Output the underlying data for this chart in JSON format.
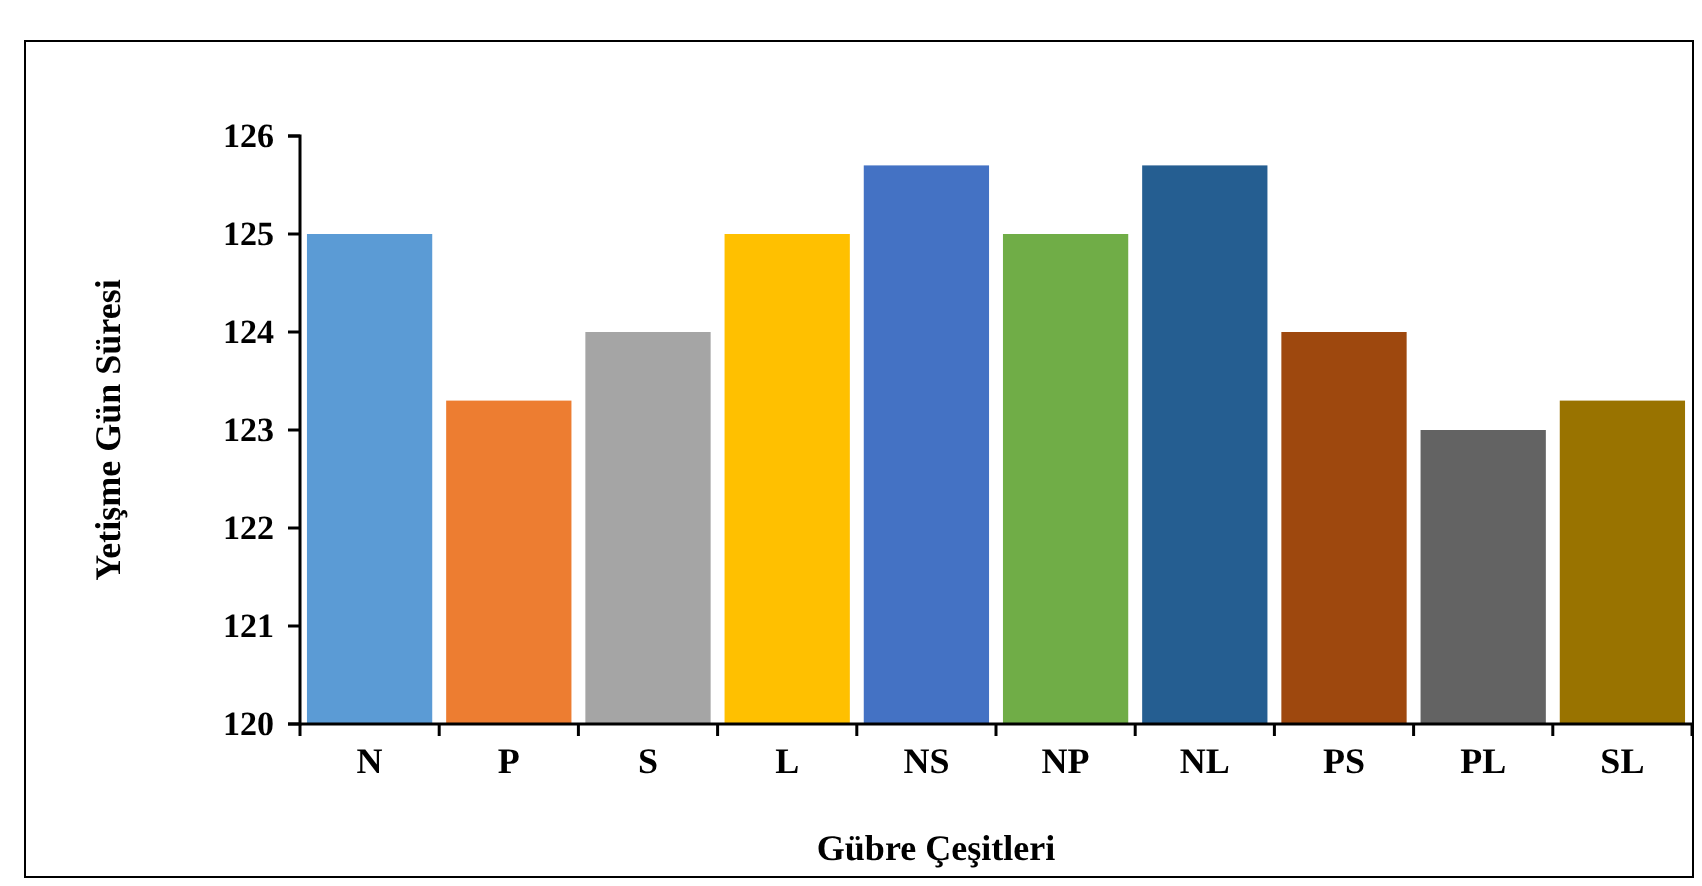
{
  "chart_data": {
    "type": "bar",
    "categories": [
      "N",
      "P",
      "S",
      "L",
      "NS",
      "NP",
      "NL",
      "PS",
      "PL",
      "SL"
    ],
    "values": [
      125,
      123.3,
      124,
      125,
      125.7,
      125,
      125.7,
      124,
      123,
      123.3
    ],
    "colors": [
      "#5b9bd5",
      "#ed7d31",
      "#a5a5a5",
      "#ffc000",
      "#4472c4",
      "#70ad47",
      "#255e91",
      "#9e480e",
      "#636363",
      "#997300"
    ],
    "xlabel": "Gübre Çeşitleri",
    "ylabel": "Yetişme Gün Süresi",
    "ylim": [
      120,
      126
    ],
    "yticks": [
      120,
      121,
      122,
      123,
      124,
      125,
      126
    ]
  }
}
